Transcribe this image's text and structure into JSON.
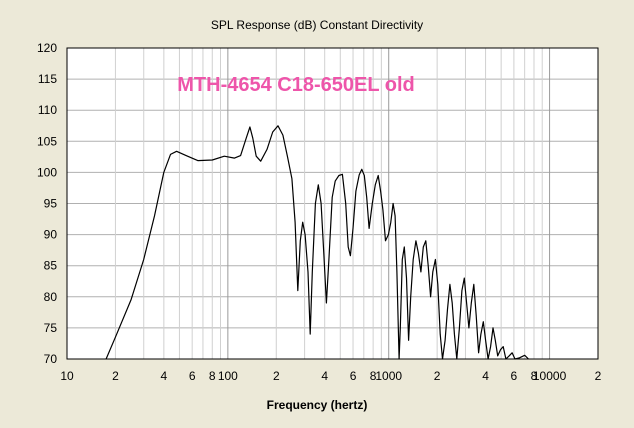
{
  "chart_data": {
    "type": "line",
    "title": "SPL Response (dB)   Constant Directivity",
    "xlabel": "Frequency (hertz)",
    "ylabel": "",
    "annotation": "MTH-4654 C18-650EL old",
    "annotation_color": "#ee55aa",
    "x_scale": "log",
    "xlim": [
      10,
      20000
    ],
    "ylim": [
      70,
      120
    ],
    "grid": true,
    "y_ticks": [
      70,
      75,
      80,
      85,
      90,
      95,
      100,
      105,
      110,
      115,
      120
    ],
    "x_ticks": [
      {
        "value": 10,
        "label": "10"
      },
      {
        "value": 20,
        "label": "2"
      },
      {
        "value": 40,
        "label": "4"
      },
      {
        "value": 60,
        "label": "6"
      },
      {
        "value": 80,
        "label": "8"
      },
      {
        "value": 100,
        "label": "100"
      },
      {
        "value": 200,
        "label": "2"
      },
      {
        "value": 400,
        "label": "4"
      },
      {
        "value": 600,
        "label": "6"
      },
      {
        "value": 800,
        "label": "8"
      },
      {
        "value": 1000,
        "label": "1000"
      },
      {
        "value": 2000,
        "label": "2"
      },
      {
        "value": 4000,
        "label": "4"
      },
      {
        "value": 6000,
        "label": "6"
      },
      {
        "value": 8000,
        "label": "8"
      },
      {
        "value": 10000,
        "label": "10000"
      },
      {
        "value": 20000,
        "label": "2"
      }
    ],
    "series": [
      {
        "line_color": "#000000",
        "points": [
          [
            17.5,
            70.0
          ],
          [
            20,
            73.5
          ],
          [
            25,
            79.5
          ],
          [
            30,
            86.0
          ],
          [
            35,
            93.0
          ],
          [
            40,
            100.0
          ],
          [
            44,
            102.9
          ],
          [
            48,
            103.4
          ],
          [
            55,
            102.7
          ],
          [
            65,
            101.9
          ],
          [
            80,
            102.0
          ],
          [
            95,
            102.6
          ],
          [
            110,
            102.3
          ],
          [
            120,
            102.7
          ],
          [
            130,
            105.5
          ],
          [
            137,
            107.3
          ],
          [
            143,
            105.5
          ],
          [
            150,
            102.6
          ],
          [
            160,
            101.8
          ],
          [
            175,
            103.7
          ],
          [
            190,
            106.5
          ],
          [
            205,
            107.5
          ],
          [
            220,
            106.0
          ],
          [
            235,
            102.5
          ],
          [
            250,
            99.0
          ],
          [
            262,
            92.0
          ],
          [
            272,
            81.0
          ],
          [
            282,
            89.0
          ],
          [
            292,
            92.0
          ],
          [
            302,
            90.0
          ],
          [
            315,
            84.0
          ],
          [
            325,
            74.0
          ],
          [
            335,
            84.0
          ],
          [
            350,
            95.0
          ],
          [
            365,
            98.0
          ],
          [
            380,
            95.0
          ],
          [
            395,
            87.0
          ],
          [
            410,
            79.0
          ],
          [
            425,
            86.0
          ],
          [
            445,
            96.0
          ],
          [
            465,
            98.6
          ],
          [
            490,
            99.5
          ],
          [
            515,
            99.7
          ],
          [
            540,
            95.0
          ],
          [
            560,
            88.0
          ],
          [
            578,
            86.6
          ],
          [
            600,
            91.0
          ],
          [
            625,
            97.0
          ],
          [
            655,
            99.6
          ],
          [
            680,
            100.5
          ],
          [
            705,
            99.5
          ],
          [
            730,
            96.0
          ],
          [
            755,
            91.0
          ],
          [
            790,
            95.0
          ],
          [
            825,
            98.0
          ],
          [
            860,
            99.5
          ],
          [
            890,
            97.0
          ],
          [
            920,
            94.0
          ],
          [
            955,
            89.0
          ],
          [
            995,
            90.0
          ],
          [
            1030,
            92.0
          ],
          [
            1065,
            95.0
          ],
          [
            1095,
            93.0
          ],
          [
            1125,
            84.0
          ],
          [
            1160,
            70.0
          ],
          [
            1180,
            75.0
          ],
          [
            1215,
            86.0
          ],
          [
            1250,
            88.0
          ],
          [
            1290,
            83.0
          ],
          [
            1330,
            73.0
          ],
          [
            1370,
            80.0
          ],
          [
            1420,
            86.0
          ],
          [
            1475,
            89.0
          ],
          [
            1530,
            87.0
          ],
          [
            1585,
            84.0
          ],
          [
            1640,
            88.0
          ],
          [
            1700,
            89.0
          ],
          [
            1760,
            85.0
          ],
          [
            1820,
            80.0
          ],
          [
            1880,
            84.0
          ],
          [
            1950,
            86.0
          ],
          [
            2020,
            82.0
          ],
          [
            2090,
            74.0
          ],
          [
            2160,
            70.0
          ],
          [
            2240,
            73.0
          ],
          [
            2320,
            78.0
          ],
          [
            2400,
            82.0
          ],
          [
            2480,
            79.0
          ],
          [
            2560,
            74.0
          ],
          [
            2650,
            70.0
          ],
          [
            2750,
            75.0
          ],
          [
            2850,
            81.0
          ],
          [
            2950,
            83.0
          ],
          [
            3050,
            79.0
          ],
          [
            3150,
            75.0
          ],
          [
            3260,
            79.0
          ],
          [
            3380,
            82.0
          ],
          [
            3500,
            77.0
          ],
          [
            3620,
            71.0
          ],
          [
            3740,
            74.0
          ],
          [
            3870,
            76.0
          ],
          [
            4000,
            73.0
          ],
          [
            4150,
            70.0
          ],
          [
            4300,
            72.0
          ],
          [
            4450,
            75.0
          ],
          [
            4600,
            73.0
          ],
          [
            4760,
            70.5
          ],
          [
            4950,
            71.5
          ],
          [
            5150,
            72.0
          ],
          [
            5350,
            70.0
          ],
          [
            5600,
            70.5
          ],
          [
            5850,
            71.0
          ],
          [
            6100,
            70.0
          ],
          [
            6500,
            70.2
          ],
          [
            7000,
            70.6
          ],
          [
            7400,
            70.0
          ]
        ]
      }
    ]
  }
}
